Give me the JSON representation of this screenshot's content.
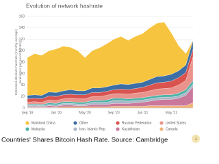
{
  "chart_data": {
    "type": "stacked_area",
    "title": "Evolution of network hashrate",
    "y_label": [
      "Estimated absolute hashrate (monthly average)",
      "[exahashes per second (EH/s)]"
    ],
    "categories": [
      "Sep '19",
      null,
      null,
      null,
      "Jan '20",
      null,
      null,
      null,
      "May '20",
      null,
      null,
      null,
      "Sep '20",
      null,
      null,
      null,
      "Jan '21",
      null,
      null,
      null,
      "May '21",
      null,
      null,
      null
    ],
    "ylim": [
      0,
      160
    ],
    "yticks": [
      0,
      20,
      40,
      60,
      80,
      100,
      120,
      140,
      160
    ],
    "grid": true,
    "series": [
      {
        "name": "Mainland China",
        "color": "#f7c43f",
        "values": [
          66,
          72,
          70,
          72,
          76,
          78,
          74,
          70,
          58,
          65,
          70,
          75,
          80,
          83,
          77,
          82,
          85,
          90,
          93,
          94,
          72,
          44,
          20,
          0
        ]
      },
      {
        "name": "Other",
        "color": "#3d6fa6",
        "values": [
          6,
          6,
          6,
          7,
          7,
          7,
          8,
          7,
          7,
          8,
          8,
          8,
          8,
          9,
          9,
          9,
          9,
          10,
          11,
          11,
          12,
          12,
          13,
          15
        ]
      },
      {
        "name": "Russian Federation",
        "color": "#d9534f",
        "values": [
          6,
          6,
          6,
          7,
          7,
          7,
          7,
          7,
          7,
          7,
          7,
          7,
          7,
          8,
          8,
          8,
          9,
          10,
          11,
          11,
          12,
          13,
          14,
          13
        ]
      },
      {
        "name": "United States",
        "color": "#e9938c",
        "values": [
          4,
          4,
          4,
          5,
          5,
          5,
          6,
          6,
          6,
          7,
          7,
          8,
          8,
          8,
          8,
          9,
          9,
          10,
          11,
          11,
          12,
          14,
          16,
          42
        ]
      },
      {
        "name": "Malaysia",
        "color": "#4fb3a9",
        "values": [
          2,
          2,
          2,
          3,
          3,
          3,
          3,
          3,
          3,
          3,
          3,
          4,
          4,
          4,
          4,
          4,
          4,
          4,
          4,
          4,
          4,
          5,
          5,
          6
        ]
      },
      {
        "name": "Iran, Islamic Rep.",
        "color": "#a9b8c6",
        "values": [
          2,
          2,
          2,
          2,
          2,
          3,
          3,
          3,
          3,
          4,
          4,
          4,
          5,
          5,
          4,
          4,
          4,
          4,
          4,
          4,
          4,
          4,
          5,
          5
        ]
      },
      {
        "name": "Kazakhstan",
        "color": "#c9789b",
        "values": [
          1,
          2,
          1,
          3,
          2,
          3,
          3,
          2,
          2,
          4,
          4,
          4,
          5,
          5,
          5,
          6,
          7,
          8,
          10,
          11,
          11,
          13,
          18,
          28
        ]
      },
      {
        "name": "Canada",
        "color": "#f1b27a",
        "values": [
          1,
          1,
          1,
          1,
          1,
          2,
          2,
          2,
          2,
          2,
          2,
          2,
          3,
          3,
          3,
          3,
          3,
          4,
          4,
          4,
          4,
          4,
          4,
          9
        ]
      }
    ],
    "caption": "Countries' Shares Bitcoin Hash Rate. Source: Cambridge"
  }
}
